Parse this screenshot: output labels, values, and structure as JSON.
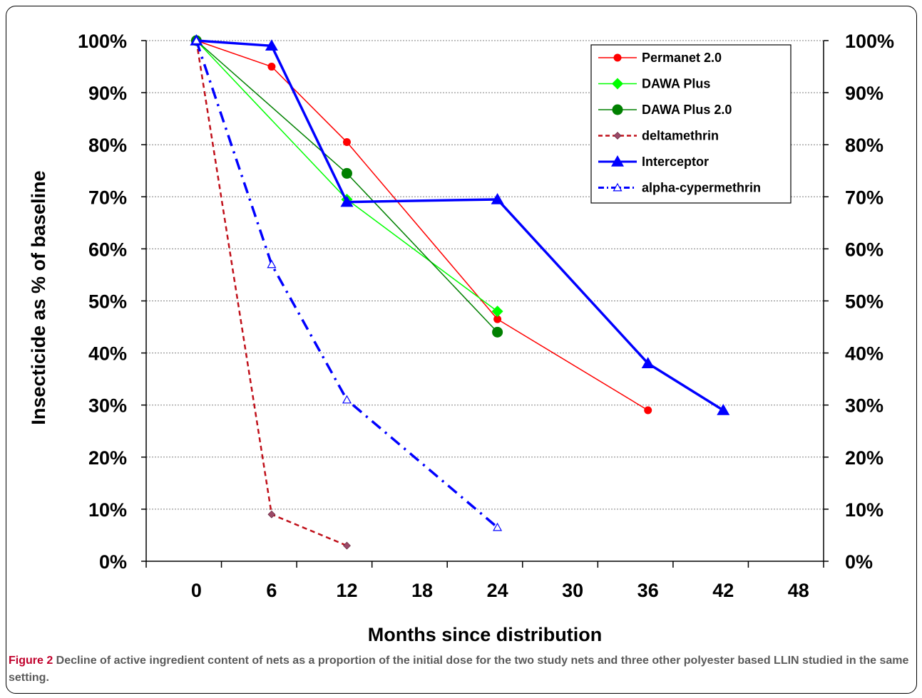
{
  "chart_data": {
    "type": "line",
    "xlabel": "Months since distribution",
    "ylabel": "Insecticide as % of baseline",
    "xlim": [
      -4,
      50
    ],
    "ylim": [
      0,
      100
    ],
    "x_ticks": [
      0,
      6,
      12,
      18,
      24,
      30,
      36,
      42,
      48
    ],
    "x_tick_labels": [
      "0",
      "6",
      "12",
      "18",
      "24",
      "30",
      "36",
      "42",
      "48"
    ],
    "y_ticks": [
      0,
      10,
      20,
      30,
      40,
      50,
      60,
      70,
      80,
      90,
      100
    ],
    "y_tick_labels": [
      "0%",
      "10%",
      "20%",
      "30%",
      "40%",
      "50%",
      "60%",
      "70%",
      "80%",
      "90%",
      "100%"
    ],
    "grid": "horizontal dashed",
    "legend_position": "top-right",
    "series": [
      {
        "name": "Permanet 2.0",
        "x": [
          0,
          6,
          12,
          24,
          36
        ],
        "y": [
          100,
          95,
          80.5,
          46.5,
          29
        ],
        "color": "#ff0000",
        "marker": "circle",
        "dash": "solid",
        "width": 1.5
      },
      {
        "name": "DAWA Plus",
        "x": [
          0,
          12,
          24
        ],
        "y": [
          100,
          69.5,
          48
        ],
        "color": "#00ff00",
        "marker": "diamond",
        "dash": "solid",
        "width": 1.5
      },
      {
        "name": "DAWA Plus 2.0",
        "x": [
          0,
          12,
          24
        ],
        "y": [
          100,
          74.5,
          44
        ],
        "color": "#008000",
        "marker": "circle-large",
        "dash": "solid",
        "width": 1.5
      },
      {
        "name": "deltamethrin",
        "x": [
          0,
          6,
          12
        ],
        "y": [
          100,
          9,
          3
        ],
        "color": "#c0101a",
        "marker": "small-diamond",
        "dash": "dashed",
        "width": 2.5
      },
      {
        "name": "Interceptor",
        "x": [
          0,
          6,
          12,
          24,
          36,
          42
        ],
        "y": [
          100,
          99,
          69,
          69.5,
          38,
          29
        ],
        "color": "#0000ff",
        "marker": "triangle",
        "dash": "solid",
        "width": 3.5
      },
      {
        "name": "alpha-cypermethrin",
        "x": [
          0,
          6,
          12,
          24
        ],
        "y": [
          100,
          57,
          31,
          6.5
        ],
        "color": "#0000ff",
        "marker": "triangle-open",
        "dash": "dashdot",
        "width": 3.5
      }
    ]
  },
  "caption": {
    "label": "Figure 2",
    "text": " Decline of active ingredient content of nets as a proportion of the initial dose for the two study nets and three other polyester based LLIN studied in the same setting",
    "period": "."
  }
}
